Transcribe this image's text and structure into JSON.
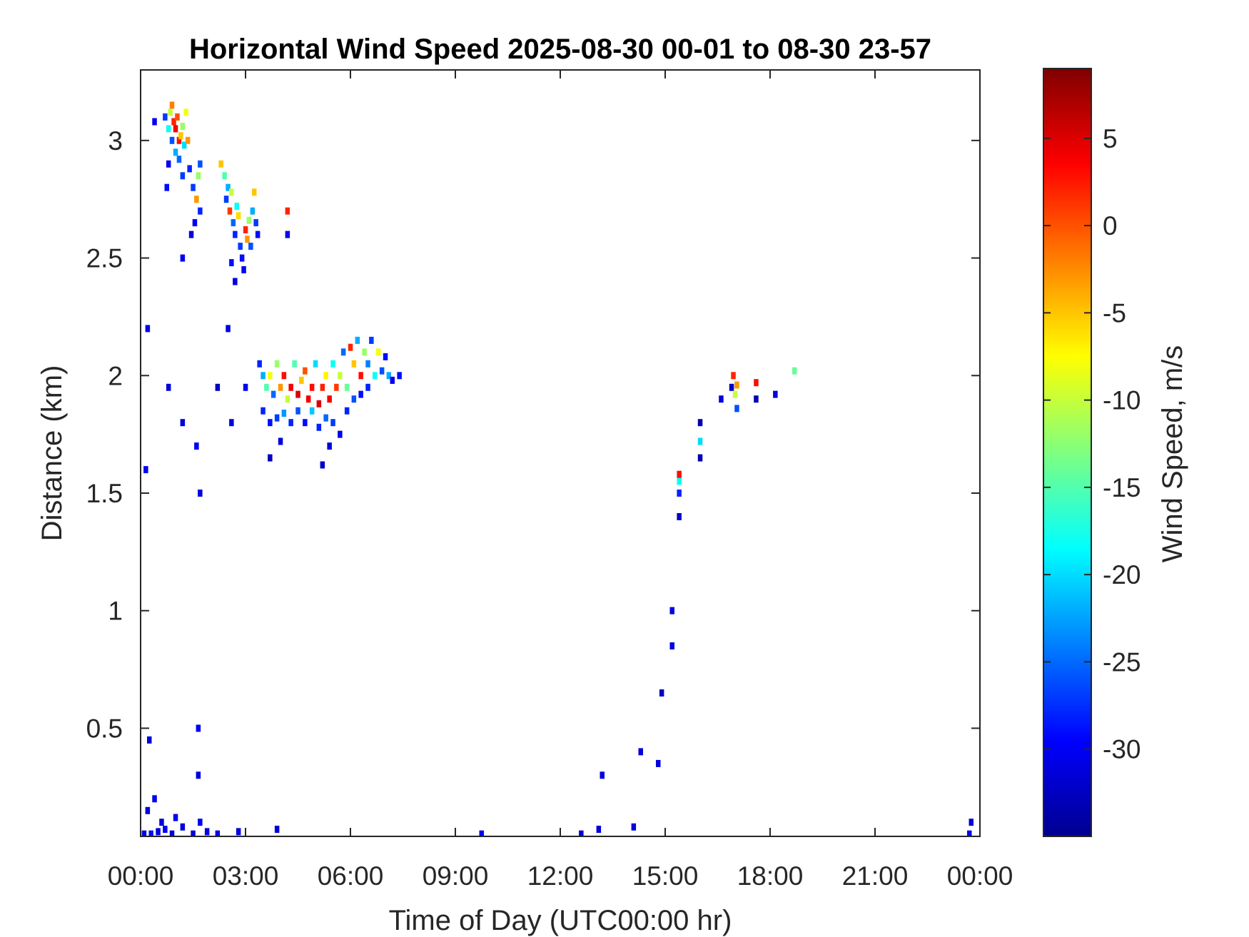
{
  "chart_data": {
    "type": "heatmap",
    "title": "Horizontal Wind Speed 2025-08-30 00-01 to 08-30 23-57",
    "xlabel": "Time of Day (UTC00:00 hr)",
    "ylabel": "Distance (km)",
    "colorbar_label": "Wind Speed, m/s",
    "xlim": [
      0,
      24
    ],
    "ylim": [
      0.04,
      3.3
    ],
    "clim": [
      -35,
      9
    ],
    "colormap": "jet",
    "x_ticks": [
      0,
      3,
      6,
      9,
      12,
      15,
      18,
      21,
      24
    ],
    "x_tick_labels": [
      "00:00",
      "03:00",
      "06:00",
      "09:00",
      "12:00",
      "15:00",
      "18:00",
      "21:00",
      "00:00"
    ],
    "y_ticks": [
      0.5,
      1,
      1.5,
      2,
      2.5,
      3
    ],
    "y_tick_labels": [
      "0.5",
      "1",
      "1.5",
      "2",
      "2.5",
      "3"
    ],
    "colorbar_ticks": [
      5,
      0,
      -5,
      -10,
      -15,
      -20,
      -25,
      -30
    ],
    "colorbar_tick_labels": [
      "5",
      "0",
      "-5",
      "-10",
      "-15",
      "-20",
      "-25",
      "-30"
    ],
    "grid": false,
    "colors": {
      "axes": "#262626",
      "background": "#ffffff"
    },
    "cells": [
      [
        0.4,
        3.08,
        -30
      ],
      [
        0.7,
        3.1,
        -27
      ],
      [
        0.8,
        3.05,
        -18
      ],
      [
        0.85,
        3.12,
        -10
      ],
      [
        0.9,
        3.15,
        -2
      ],
      [
        0.95,
        3.08,
        2
      ],
      [
        1.0,
        3.05,
        4
      ],
      [
        1.05,
        3.1,
        0
      ],
      [
        1.1,
        3.0,
        3
      ],
      [
        1.15,
        3.02,
        -5
      ],
      [
        1.2,
        3.06,
        -12
      ],
      [
        1.25,
        2.98,
        -20
      ],
      [
        1.0,
        2.95,
        -22
      ],
      [
        0.9,
        3.0,
        -26
      ],
      [
        1.1,
        2.92,
        -25
      ],
      [
        1.3,
        3.12,
        -8
      ],
      [
        1.35,
        3.0,
        -3
      ],
      [
        0.8,
        2.9,
        -30
      ],
      [
        0.75,
        2.8,
        -29
      ],
      [
        1.2,
        2.85,
        -27
      ],
      [
        1.4,
        2.88,
        -28
      ],
      [
        1.5,
        2.8,
        -27
      ],
      [
        1.6,
        2.75,
        -3
      ],
      [
        1.65,
        2.85,
        -12
      ],
      [
        1.7,
        2.7,
        -28
      ],
      [
        1.55,
        2.65,
        -30
      ],
      [
        1.45,
        2.6,
        -31
      ],
      [
        1.7,
        2.9,
        -26
      ],
      [
        1.2,
        2.5,
        -30
      ],
      [
        2.3,
        2.9,
        -5
      ],
      [
        2.4,
        2.85,
        -15
      ],
      [
        2.5,
        2.8,
        -22
      ],
      [
        2.45,
        2.75,
        -27
      ],
      [
        2.55,
        2.7,
        1
      ],
      [
        2.6,
        2.78,
        -10
      ],
      [
        2.65,
        2.65,
        -25
      ],
      [
        2.7,
        2.6,
        -28
      ],
      [
        2.75,
        2.72,
        -18
      ],
      [
        2.8,
        2.68,
        -6
      ],
      [
        2.85,
        2.55,
        -27
      ],
      [
        2.9,
        2.5,
        -29
      ],
      [
        3.0,
        2.62,
        2
      ],
      [
        3.05,
        2.58,
        -3
      ],
      [
        3.1,
        2.66,
        -12
      ],
      [
        3.15,
        2.55,
        -26
      ],
      [
        3.2,
        2.7,
        -22
      ],
      [
        3.25,
        2.78,
        -5
      ],
      [
        3.3,
        2.65,
        -27
      ],
      [
        2.95,
        2.45,
        -30
      ],
      [
        2.7,
        2.4,
        -31
      ],
      [
        2.6,
        2.48,
        -29
      ],
      [
        3.35,
        2.6,
        -29
      ],
      [
        4.2,
        2.7,
        2
      ],
      [
        4.2,
        2.6,
        -30
      ],
      [
        3.4,
        2.05,
        -28
      ],
      [
        3.5,
        2.0,
        -22
      ],
      [
        3.6,
        1.95,
        -15
      ],
      [
        3.7,
        2.0,
        -8
      ],
      [
        3.8,
        1.92,
        -25
      ],
      [
        3.9,
        2.05,
        -12
      ],
      [
        4.0,
        1.95,
        -3
      ],
      [
        4.1,
        2.0,
        3
      ],
      [
        4.2,
        1.9,
        -10
      ],
      [
        4.3,
        1.95,
        4
      ],
      [
        4.4,
        2.05,
        -15
      ],
      [
        4.5,
        1.92,
        5
      ],
      [
        4.6,
        1.98,
        -5
      ],
      [
        4.7,
        2.02,
        0
      ],
      [
        4.8,
        1.9,
        4
      ],
      [
        4.9,
        1.95,
        3
      ],
      [
        5.0,
        2.05,
        -20
      ],
      [
        5.1,
        1.88,
        5
      ],
      [
        5.2,
        1.95,
        2
      ],
      [
        5.3,
        2.0,
        -7
      ],
      [
        5.4,
        1.9,
        4
      ],
      [
        5.5,
        2.05,
        -18
      ],
      [
        5.6,
        1.95,
        1
      ],
      [
        5.7,
        2.0,
        -10
      ],
      [
        5.8,
        2.1,
        -25
      ],
      [
        5.9,
        1.95,
        -14
      ],
      [
        6.0,
        2.12,
        2
      ],
      [
        6.1,
        2.05,
        -5
      ],
      [
        6.2,
        2.15,
        -22
      ],
      [
        6.3,
        2.0,
        3
      ],
      [
        6.4,
        2.1,
        -12
      ],
      [
        6.5,
        2.05,
        -24
      ],
      [
        6.6,
        2.15,
        -27
      ],
      [
        6.7,
        2.0,
        -18
      ],
      [
        6.8,
        2.1,
        -8
      ],
      [
        6.9,
        2.02,
        -26
      ],
      [
        7.0,
        2.08,
        -29
      ],
      [
        7.1,
        2.0,
        -22
      ],
      [
        7.2,
        1.98,
        -30
      ],
      [
        7.4,
        2.0,
        -29
      ],
      [
        3.5,
        1.85,
        -28
      ],
      [
        3.7,
        1.8,
        -29
      ],
      [
        3.9,
        1.82,
        -27
      ],
      [
        4.1,
        1.84,
        -23
      ],
      [
        4.3,
        1.8,
        -28
      ],
      [
        4.5,
        1.85,
        -26
      ],
      [
        4.7,
        1.8,
        -29
      ],
      [
        4.9,
        1.85,
        -21
      ],
      [
        5.1,
        1.78,
        -28
      ],
      [
        5.3,
        1.82,
        -25
      ],
      [
        5.5,
        1.8,
        -27
      ],
      [
        5.7,
        1.75,
        -30
      ],
      [
        5.9,
        1.85,
        -28
      ],
      [
        6.1,
        1.9,
        -26
      ],
      [
        6.3,
        1.92,
        -29
      ],
      [
        6.5,
        1.95,
        -28
      ],
      [
        4.0,
        1.72,
        -31
      ],
      [
        5.4,
        1.7,
        -31
      ],
      [
        3.7,
        1.65,
        -32
      ],
      [
        5.2,
        1.62,
        -32
      ],
      [
        0.8,
        1.95,
        -31
      ],
      [
        1.2,
        1.8,
        -31
      ],
      [
        1.6,
        1.7,
        -30
      ],
      [
        2.2,
        1.95,
        -32
      ],
      [
        2.6,
        1.8,
        -31
      ],
      [
        1.7,
        1.5,
        -31
      ],
      [
        0.2,
        2.2,
        -30
      ],
      [
        0.15,
        1.6,
        -30
      ],
      [
        2.5,
        2.2,
        -31
      ],
      [
        3.0,
        1.95,
        -30
      ],
      [
        0.1,
        0.05,
        -31
      ],
      [
        0.3,
        0.05,
        -29
      ],
      [
        0.5,
        0.06,
        -31
      ],
      [
        0.7,
        0.07,
        -30
      ],
      [
        0.9,
        0.05,
        -31
      ],
      [
        0.2,
        0.15,
        -31
      ],
      [
        0.4,
        0.2,
        -30
      ],
      [
        0.6,
        0.1,
        -31
      ],
      [
        1.0,
        0.12,
        -30
      ],
      [
        1.2,
        0.08,
        -31
      ],
      [
        1.5,
        0.05,
        -31
      ],
      [
        1.7,
        0.1,
        -30
      ],
      [
        1.9,
        0.06,
        -31
      ],
      [
        2.2,
        0.05,
        -30
      ],
      [
        2.8,
        0.06,
        -31
      ],
      [
        1.65,
        0.3,
        -31
      ],
      [
        1.65,
        0.5,
        -30
      ],
      [
        0.25,
        0.45,
        -31
      ],
      [
        3.9,
        0.07,
        -31
      ],
      [
        9.75,
        0.05,
        -30
      ],
      [
        12.6,
        0.05,
        -31
      ],
      [
        13.1,
        0.07,
        -31
      ],
      [
        13.2,
        0.3,
        -31
      ],
      [
        14.1,
        0.08,
        -31
      ],
      [
        14.3,
        0.4,
        -31
      ],
      [
        14.8,
        0.35,
        -31
      ],
      [
        14.9,
        0.65,
        -32
      ],
      [
        15.2,
        0.85,
        -31
      ],
      [
        15.2,
        1.0,
        -31
      ],
      [
        15.4,
        1.4,
        -32
      ],
      [
        15.4,
        1.5,
        -28
      ],
      [
        15.4,
        1.55,
        -18
      ],
      [
        15.4,
        1.58,
        3
      ],
      [
        16.0,
        1.65,
        -33
      ],
      [
        16.0,
        1.72,
        -20
      ],
      [
        16.0,
        1.8,
        -33
      ],
      [
        16.6,
        1.9,
        -31
      ],
      [
        16.9,
        1.95,
        -32
      ],
      [
        16.95,
        2.0,
        2
      ],
      [
        17.0,
        1.92,
        -10
      ],
      [
        17.05,
        1.96,
        -3
      ],
      [
        17.05,
        1.86,
        -26
      ],
      [
        17.6,
        1.97,
        3
      ],
      [
        17.6,
        1.9,
        -33
      ],
      [
        18.15,
        1.92,
        -31
      ],
      [
        18.7,
        2.02,
        -14
      ],
      [
        23.7,
        0.05,
        -30
      ],
      [
        23.75,
        0.1,
        -31
      ]
    ]
  }
}
